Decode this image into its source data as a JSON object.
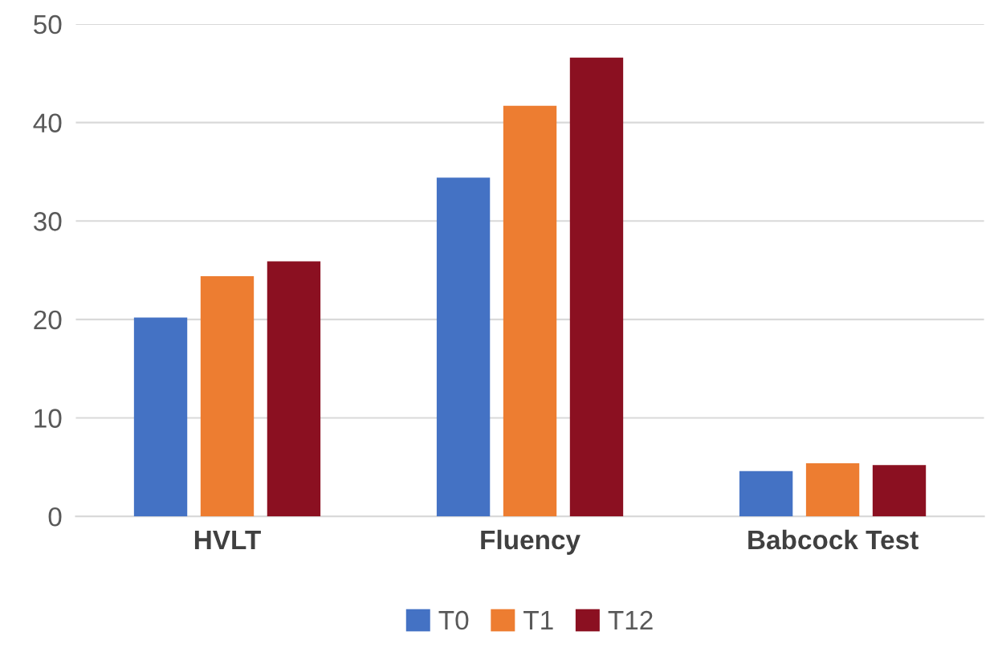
{
  "chart_data": {
    "type": "bar",
    "categories": [
      "HVLT",
      "Fluency",
      "Babcock Test"
    ],
    "series": [
      {
        "name": "T0",
        "color": "#4472c4",
        "values": [
          20.2,
          34.4,
          4.6
        ]
      },
      {
        "name": "T1",
        "color": "#ed7d31",
        "values": [
          24.4,
          41.7,
          5.4
        ]
      },
      {
        "name": "T12",
        "color": "#8b1021",
        "values": [
          25.9,
          46.6,
          5.2
        ]
      }
    ],
    "ylim": [
      0,
      50
    ],
    "yticks": [
      0,
      10,
      20,
      30,
      40,
      50
    ],
    "grid": "y",
    "legend": "bottom"
  }
}
